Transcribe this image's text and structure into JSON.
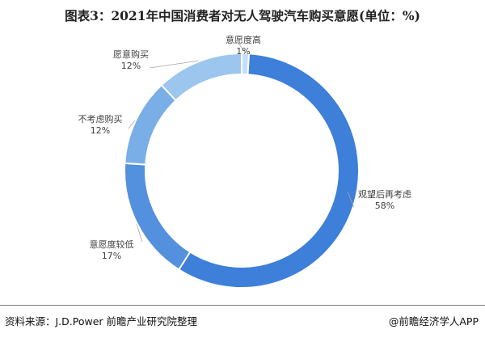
{
  "title": "图表3：2021年中国消费者对无人驾驶汽车购买意愿(单位：%)",
  "footer": {
    "source": "资料来源：J.D.Power 前瞻产业研究院整理",
    "brand": "@前瞻经济学人APP"
  },
  "colors": {
    "watch": "#3d7fd9",
    "lower": "#5390dd",
    "notconsider": "#7aaee6",
    "willing": "#9cc6ee",
    "higher": "#c4def6"
  },
  "chart_data": {
    "type": "pie",
    "variant": "donut",
    "title": "图表3：2021年中国消费者对无人驾驶汽车购买意愿(单位：%)",
    "unit": "%",
    "slices": [
      {
        "label": "观望后再考虑",
        "value": 58,
        "display": "58%",
        "color": "#3d7fd9"
      },
      {
        "label": "意愿度较低",
        "value": 17,
        "display": "17%",
        "color": "#5390dd"
      },
      {
        "label": "不考虑购买",
        "value": 12,
        "display": "12%",
        "color": "#7aaee6"
      },
      {
        "label": "愿意购买",
        "value": 12,
        "display": "12%",
        "color": "#9cc6ee"
      },
      {
        "label": "意愿度高",
        "value": 1,
        "display": "1%",
        "color": "#c4def6"
      }
    ]
  }
}
